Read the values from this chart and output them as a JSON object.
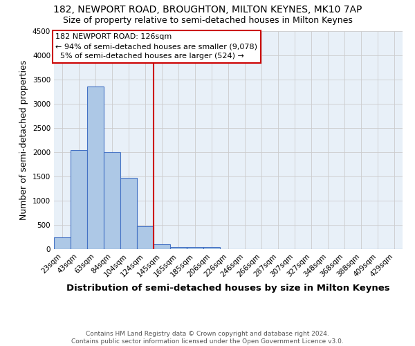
{
  "title": "182, NEWPORT ROAD, BROUGHTON, MILTON KEYNES, MK10 7AP",
  "subtitle": "Size of property relative to semi-detached houses in Milton Keynes",
  "xlabel": "Distribution of semi-detached houses by size in Milton Keynes",
  "ylabel": "Number of semi-detached properties",
  "footer_line1": "Contains HM Land Registry data © Crown copyright and database right 2024.",
  "footer_line2": "Contains public sector information licensed under the Open Government Licence v3.0.",
  "categories": [
    "23sqm",
    "43sqm",
    "63sqm",
    "84sqm",
    "104sqm",
    "124sqm",
    "145sqm",
    "165sqm",
    "185sqm",
    "206sqm",
    "226sqm",
    "246sqm",
    "266sqm",
    "287sqm",
    "307sqm",
    "327sqm",
    "348sqm",
    "368sqm",
    "388sqm",
    "409sqm",
    "429sqm"
  ],
  "values": [
    250,
    2050,
    3350,
    2000,
    1470,
    475,
    100,
    50,
    50,
    50,
    0,
    0,
    0,
    0,
    0,
    0,
    0,
    0,
    0,
    0,
    0
  ],
  "bar_color": "#adc8e6",
  "bar_edge_color": "#4472c4",
  "background_color": "#e8f0f8",
  "ylim": [
    0,
    4500
  ],
  "yticks": [
    0,
    500,
    1000,
    1500,
    2000,
    2500,
    3000,
    3500,
    4000,
    4500
  ],
  "red_line_x": 5.5,
  "property_label": "182 NEWPORT ROAD: 126sqm",
  "pct_smaller": 94,
  "count_smaller": "9,078",
  "pct_larger": 5,
  "count_larger": "524",
  "red_line_color": "#cc0000",
  "grid_color": "#cccccc",
  "title_fontsize": 10,
  "subtitle_fontsize": 9,
  "axis_label_fontsize": 9,
  "tick_fontsize": 7.5,
  "annotation_fontsize": 8,
  "footer_fontsize": 6.5
}
